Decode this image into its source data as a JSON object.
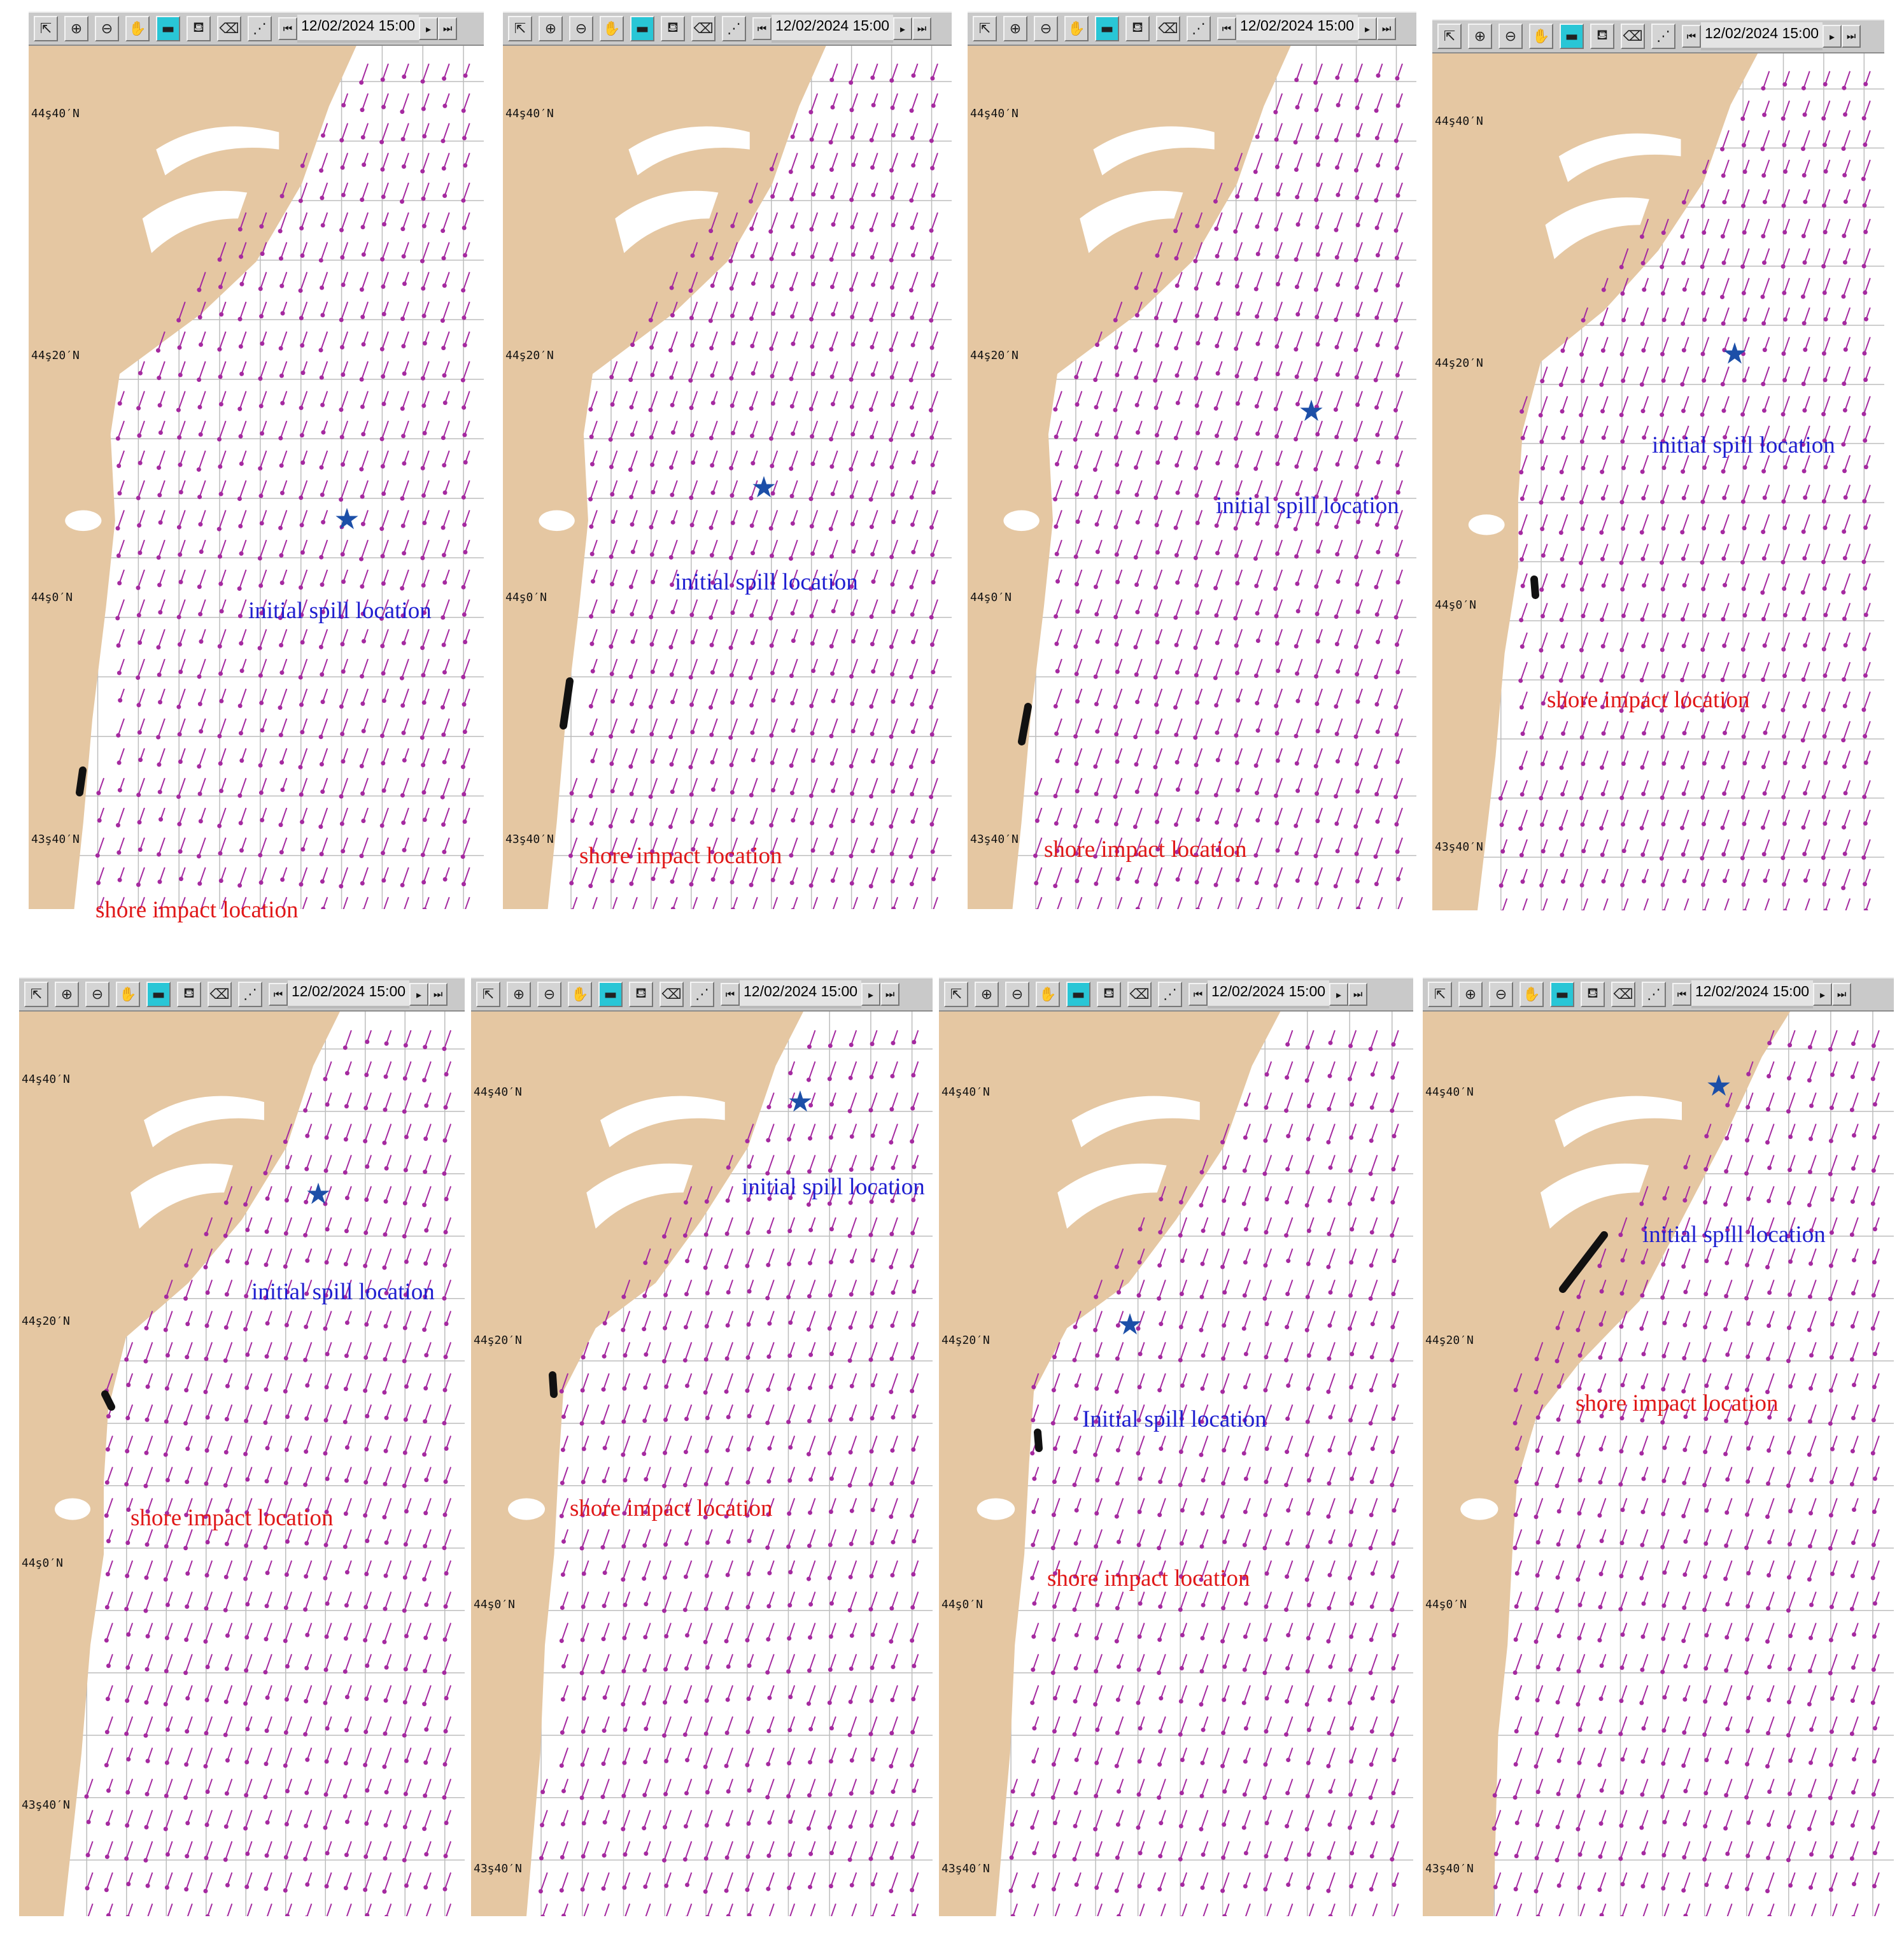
{
  "toolbar": {
    "tools": [
      {
        "name": "arrow-tool-icon",
        "glyph": "⇱"
      },
      {
        "name": "zoom-in-icon",
        "glyph": "⊕"
      },
      {
        "name": "zoom-out-icon",
        "glyph": "⊖"
      },
      {
        "name": "hand-pan-icon",
        "glyph": "✋"
      },
      {
        "name": "map-layer-icon",
        "glyph": "▬",
        "active": true
      },
      {
        "name": "spill-tool-icon",
        "glyph": "⛾"
      },
      {
        "name": "eraser-icon",
        "glyph": "⌫"
      },
      {
        "name": "trajectory-icon",
        "glyph": "⋰"
      }
    ],
    "datetime": "12/02/2024 15:00",
    "first_glyph": "⏮",
    "next_glyph": "▸",
    "last_glyph": "⏭"
  },
  "colors": {
    "land": "#e5c7a2",
    "grid": "#bdbdbd",
    "vector": "#a52aa0",
    "oiled_shore": "#111111",
    "spill_star": "#1c4fa8",
    "spill_text": "#1f1fd0",
    "shore_text": "#e01818"
  },
  "latitude_labels": [
    "44ş40′N",
    "44ş20′N",
    "44ş0′N",
    "43ş40′N"
  ],
  "spill_marker_icon": "★",
  "panels": [
    {
      "spill_label": "initial spill location",
      "shore_label": "shore impact location"
    },
    {
      "spill_label": "initial spill location",
      "shore_label": "shore impact location"
    },
    {
      "spill_label": "initial spill location",
      "shore_label": "shore impact location"
    },
    {
      "spill_label": "initial spill location",
      "shore_label": "shore impact location"
    },
    {
      "spill_label": "initial spill location",
      "shore_label": "shore impact location"
    },
    {
      "spill_label": "initial spill location",
      "shore_label": "shore impact location"
    },
    {
      "spill_label": "Initial spill location",
      "shore_label": "shore impact location"
    },
    {
      "spill_label": "initial spill location",
      "shore_label": "shore impact location"
    }
  ]
}
